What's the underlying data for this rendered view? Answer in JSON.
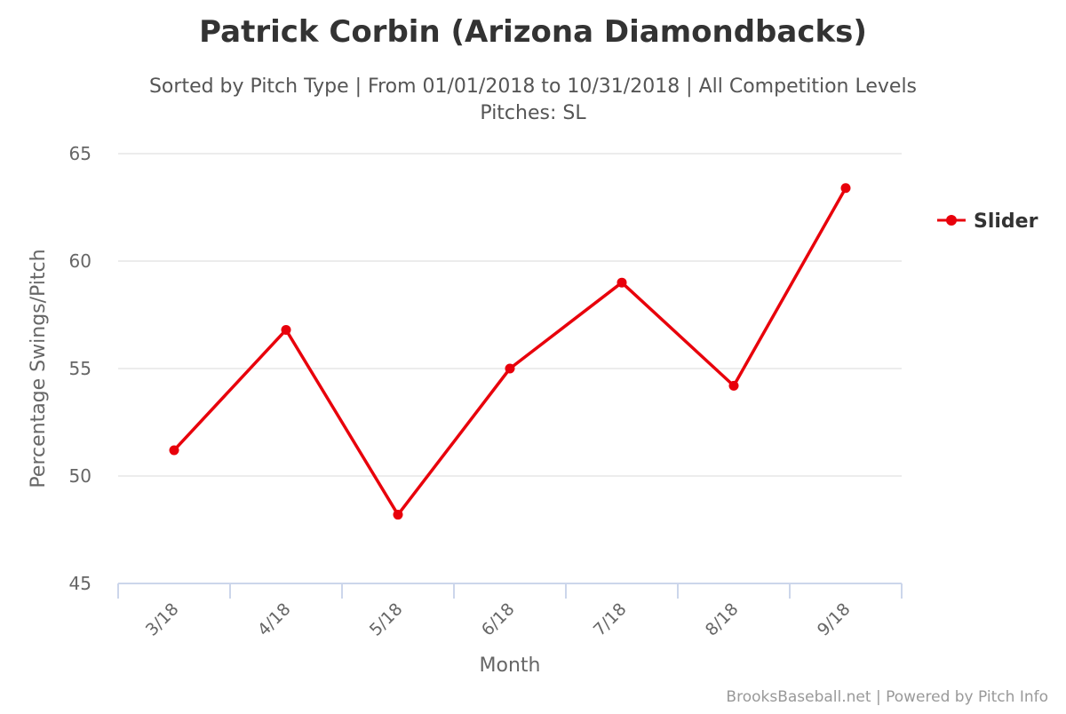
{
  "chart_data": {
    "type": "line",
    "title": "Patrick Corbin (Arizona Diamondbacks)",
    "subtitle_line1": "Sorted by Pitch Type | From 01/01/2018 to 10/31/2018 | All Competition Levels",
    "subtitle_line2": "Pitches: SL",
    "xlabel": "Month",
    "ylabel": "Percentage Swings/Pitch",
    "categories": [
      "3/18",
      "4/18",
      "5/18",
      "6/18",
      "7/18",
      "8/18",
      "9/18"
    ],
    "ylim": [
      45,
      65
    ],
    "yticks": [
      45,
      50,
      55,
      60,
      65
    ],
    "grid": true,
    "legend_position": "right",
    "series": [
      {
        "name": "Slider",
        "color": "#e8000b",
        "values": [
          51.2,
          56.8,
          48.2,
          55.0,
          59.0,
          54.2,
          63.4
        ]
      }
    ],
    "credits": "BrooksBaseball.net | Powered by Pitch Info"
  }
}
